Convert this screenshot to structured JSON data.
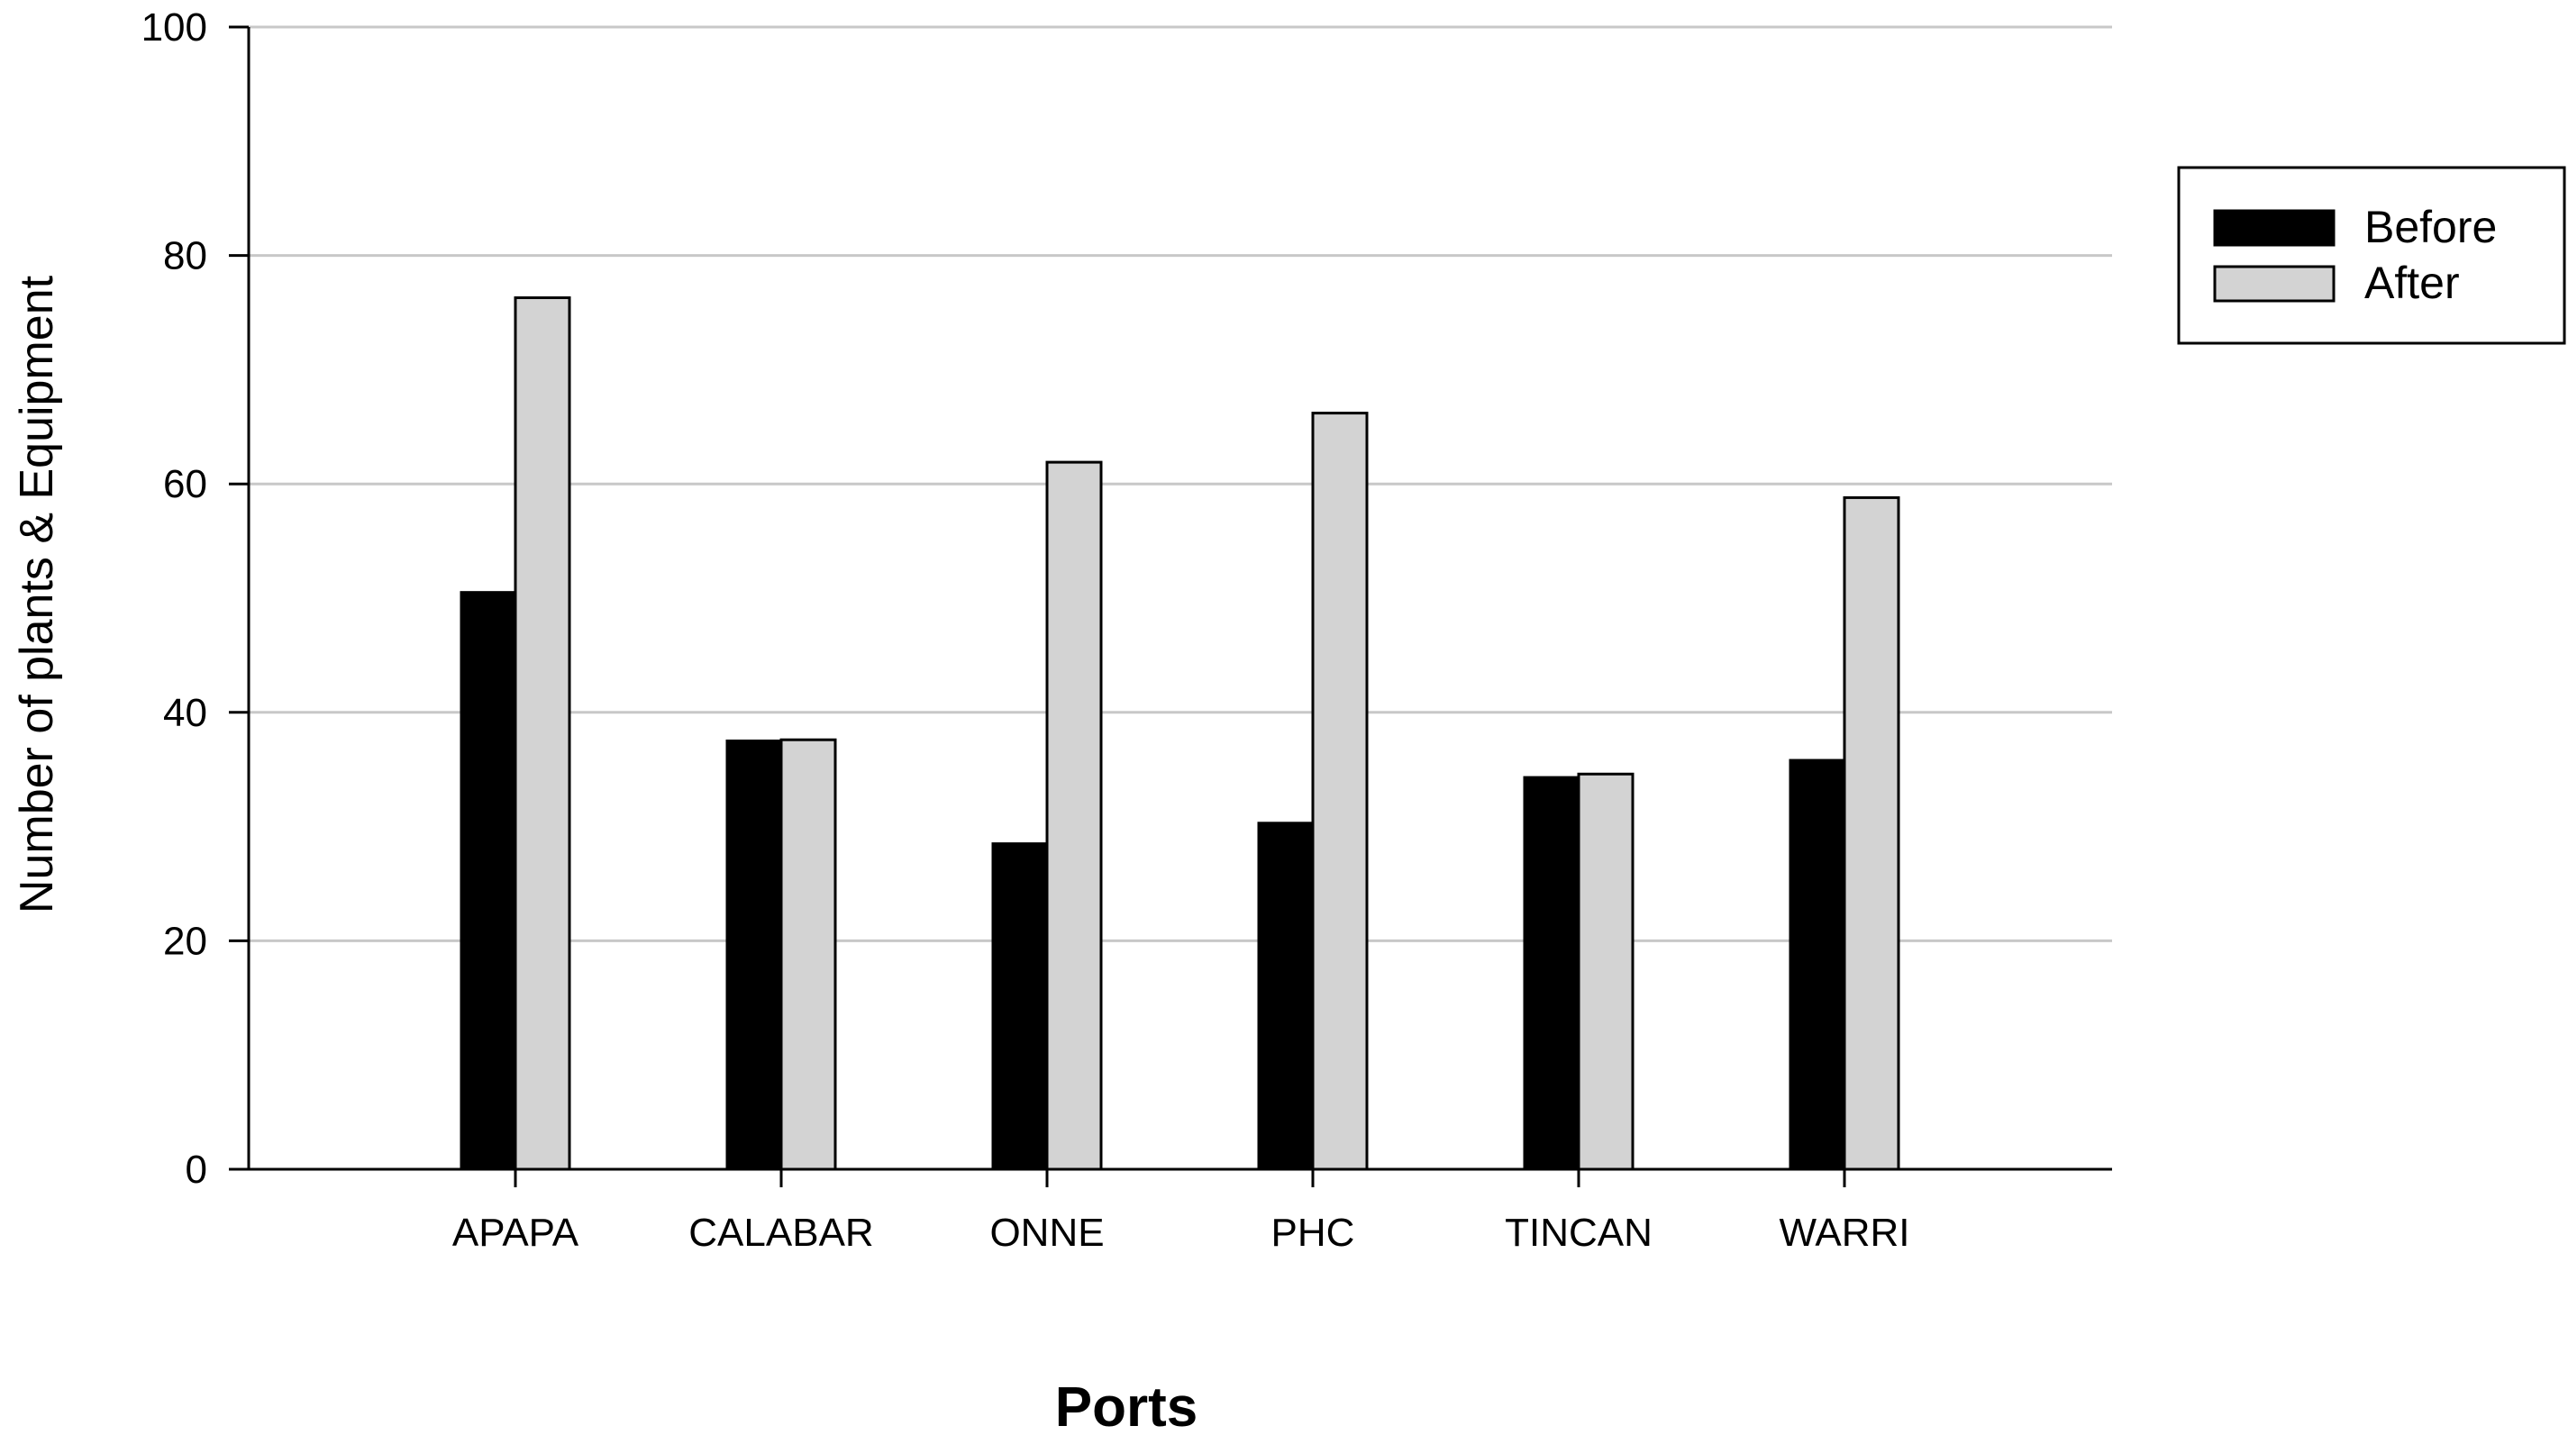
{
  "chart_data": {
    "type": "bar",
    "categories": [
      "APAPA",
      "CALABAR",
      "ONNE",
      "PHC",
      "TINCAN",
      "WARRI"
    ],
    "series": [
      {
        "name": "Before",
        "color": "#000000",
        "values": [
          50.5,
          37.5,
          28.5,
          30.3,
          34.3,
          35.8
        ]
      },
      {
        "name": "After",
        "color": "#d3d3d3",
        "values": [
          76.3,
          37.6,
          61.9,
          66.2,
          34.6,
          58.8
        ]
      }
    ],
    "xlabel": "Ports",
    "ylabel": "Number of plants & Equipment",
    "ylim": [
      0,
      100
    ],
    "yticks": [
      0,
      20,
      40,
      60,
      80,
      100
    ],
    "grid": true,
    "legend_position": "top-right"
  }
}
